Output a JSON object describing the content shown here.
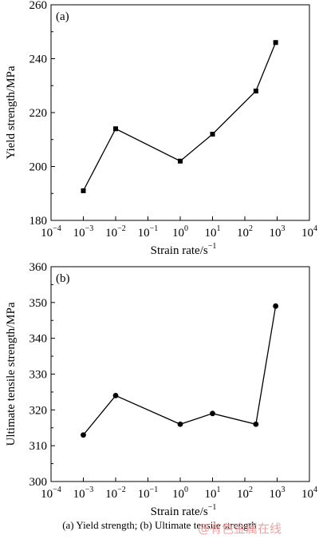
{
  "chart_data": [
    {
      "type": "line",
      "panel_label": "(a)",
      "ylabel": "Yield strength/MPa",
      "xlabel": "Strain rate/s",
      "xlabel_sup": "−1",
      "xscale": "log",
      "xlim": [
        0.0001,
        10000
      ],
      "ylim": [
        180,
        260
      ],
      "yticks": [
        180,
        200,
        220,
        240,
        260
      ],
      "marker": "square",
      "x": [
        0.001,
        0.01,
        1,
        10,
        220,
        900
      ],
      "y": [
        191,
        214,
        202,
        212,
        228,
        246
      ]
    },
    {
      "type": "line",
      "panel_label": "(b)",
      "ylabel": "Ultimate tensile strength/MPa",
      "xlabel": "Strain rate/s",
      "xlabel_sup": "−1",
      "xscale": "log",
      "xlim": [
        0.0001,
        10000
      ],
      "ylim": [
        300,
        360
      ],
      "yticks": [
        300,
        310,
        320,
        330,
        340,
        350,
        360
      ],
      "marker": "circle",
      "x": [
        0.001,
        0.01,
        1,
        10,
        220,
        900
      ],
      "y": [
        313,
        324,
        316,
        319,
        316,
        349
      ]
    }
  ],
  "xtick_exponents": [
    "−4",
    "−3",
    "−2",
    "−1",
    "0",
    "1",
    "2",
    "3",
    "4"
  ],
  "caption": "(a) Yield strength; (b) Ultimate tensile strength",
  "watermark": "@有色金属在线"
}
